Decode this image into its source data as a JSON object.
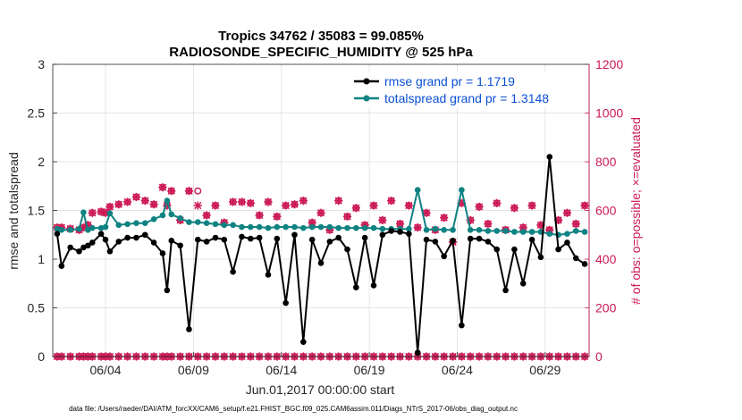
{
  "chart_data": {
    "type": "line",
    "title": "Tropics 34762 / 35083 = 99.085%",
    "subtitle": "RADIOSONDE_SPECIFIC_HUMIDITY @ 525 hPa",
    "xlabel": "Jun.01,2017 00:00:00 start",
    "ylabel": "rmse and totalspread",
    "y2label": "# of obs: o=possible; ×=evaluated",
    "footnote": "data file: /Users/raeder/DAI/ATM_forcXX/CAM6_setup/f.e21.FHIST_BGC.f09_025.CAM6assim.011/Diags_NTrS_2017-06/obs_diag_output.nc",
    "xlim": [
      0,
      30.5
    ],
    "ylim": [
      0,
      3
    ],
    "y2lim": [
      0,
      1200
    ],
    "xticks": [
      3,
      8,
      13,
      18,
      23,
      28
    ],
    "xticklabels": [
      "06/04",
      "06/09",
      "06/14",
      "06/19",
      "06/24",
      "06/29"
    ],
    "yticks": [
      0,
      0.5,
      1,
      1.5,
      2,
      2.5,
      3
    ],
    "yticklabels": [
      "0",
      "0.5",
      "1",
      "1.5",
      "2",
      "2.5",
      "3"
    ],
    "y2ticks": [
      0,
      200,
      400,
      600,
      800,
      1000,
      1200
    ],
    "y2ticklabels": [
      "0",
      "200",
      "400",
      "600",
      "800",
      "1000",
      "1200"
    ],
    "grid": true,
    "legend_position": "top-right",
    "x": [
      0.25,
      0.5,
      1.0,
      1.5,
      1.75,
      2.0,
      2.25,
      2.75,
      3.0,
      3.25,
      3.75,
      4.25,
      4.75,
      5.25,
      5.75,
      6.25,
      6.5,
      6.75,
      7.25,
      7.75,
      8.25,
      8.75,
      9.25,
      9.75,
      10.25,
      10.75,
      11.25,
      11.75,
      12.25,
      12.75,
      13.25,
      13.75,
      14.25,
      14.75,
      15.25,
      15.75,
      16.25,
      16.75,
      17.25,
      17.75,
      18.25,
      18.75,
      19.25,
      19.75,
      20.25,
      20.75,
      21.25,
      21.75,
      22.25,
      22.75,
      23.25,
      23.75,
      24.25,
      24.75,
      25.25,
      25.75,
      26.25,
      26.75,
      27.25,
      27.75,
      28.25,
      28.75,
      29.25,
      29.75,
      30.25
    ],
    "series": [
      {
        "name": "rmse grand pr = 1.1719",
        "axis": "left",
        "color": "#000000",
        "values": [
          1.26,
          0.93,
          1.12,
          1.08,
          1.12,
          1.14,
          1.17,
          1.26,
          1.2,
          1.08,
          1.18,
          1.22,
          1.22,
          1.25,
          1.17,
          1.06,
          0.68,
          1.19,
          1.14,
          0.28,
          1.2,
          1.18,
          1.22,
          1.2,
          0.87,
          1.23,
          1.21,
          1.22,
          0.84,
          1.21,
          0.55,
          1.25,
          0.15,
          1.2,
          0.96,
          1.18,
          1.22,
          1.1,
          0.71,
          1.22,
          0.73,
          1.25,
          1.29,
          1.28,
          1.26,
          0.04,
          1.2,
          1.18,
          1.03,
          1.19,
          0.32,
          1.21,
          1.21,
          1.18,
          1.1,
          0.68,
          1.1,
          0.75,
          1.2,
          1.02,
          2.05,
          1.1,
          1.17,
          1.01,
          0.95
        ]
      },
      {
        "name": "totalspread grand pr = 1.3148",
        "axis": "left",
        "color": "#0f8282",
        "values": [
          1.31,
          1.3,
          1.3,
          1.31,
          1.48,
          1.3,
          1.32,
          1.32,
          1.33,
          1.47,
          1.35,
          1.36,
          1.37,
          1.37,
          1.41,
          1.45,
          1.6,
          1.46,
          1.42,
          1.38,
          1.38,
          1.37,
          1.36,
          1.35,
          1.35,
          1.33,
          1.33,
          1.33,
          1.32,
          1.33,
          1.33,
          1.33,
          1.32,
          1.33,
          1.33,
          1.33,
          1.32,
          1.32,
          1.32,
          1.32,
          1.32,
          1.31,
          1.31,
          1.31,
          1.31,
          1.71,
          1.3,
          1.31,
          1.3,
          1.3,
          1.71,
          1.3,
          1.3,
          1.29,
          1.29,
          1.29,
          1.28,
          1.28,
          1.28,
          1.28,
          1.26,
          1.25,
          1.26,
          1.29,
          1.28
        ]
      },
      {
        "name": "possible (o)",
        "axis": "right",
        "color": "#cc1a55",
        "values": [
          530,
          530,
          525,
          520,
          530,
          540,
          590,
          595,
          590,
          615,
          625,
          635,
          655,
          640,
          625,
          695,
          620,
          680,
          560,
          680,
          680,
          580,
          620,
          550,
          635,
          635,
          630,
          580,
          635,
          575,
          620,
          625,
          640,
          550,
          590,
          520,
          640,
          575,
          610,
          540,
          620,
          560,
          640,
          545,
          620,
          530,
          590,
          520,
          570,
          470,
          630,
          560,
          615,
          545,
          630,
          520,
          610,
          530,
          620,
          540,
          520,
          560,
          590,
          545,
          620
        ]
      },
      {
        "name": "evaluated (x)",
        "axis": "right",
        "color": "#cc1a55",
        "values": [
          530,
          530,
          525,
          520,
          530,
          540,
          590,
          595,
          590,
          615,
          625,
          635,
          655,
          640,
          625,
          695,
          620,
          680,
          560,
          680,
          620,
          580,
          620,
          550,
          635,
          635,
          630,
          580,
          635,
          575,
          620,
          625,
          640,
          550,
          590,
          520,
          640,
          575,
          610,
          540,
          620,
          560,
          640,
          545,
          620,
          530,
          590,
          520,
          570,
          470,
          630,
          560,
          615,
          545,
          630,
          520,
          610,
          530,
          620,
          540,
          520,
          560,
          590,
          545,
          620
        ]
      },
      {
        "name": "possible (o) at zero",
        "axis": "right",
        "color": "#cc1a55",
        "values": [
          0,
          0,
          0,
          0,
          0,
          0,
          0,
          0,
          0,
          0,
          0,
          0,
          0,
          0,
          0,
          0,
          0,
          0,
          0,
          0,
          0,
          0,
          0,
          0,
          0,
          0,
          0,
          0,
          0,
          0,
          0,
          0,
          0,
          0,
          0,
          0,
          0,
          0,
          0,
          0,
          0,
          0,
          0,
          0,
          0,
          0,
          0,
          0,
          0,
          0,
          0,
          0,
          0,
          0,
          0,
          0,
          0,
          0,
          0,
          0,
          0,
          0,
          0,
          0,
          0
        ]
      }
    ]
  }
}
